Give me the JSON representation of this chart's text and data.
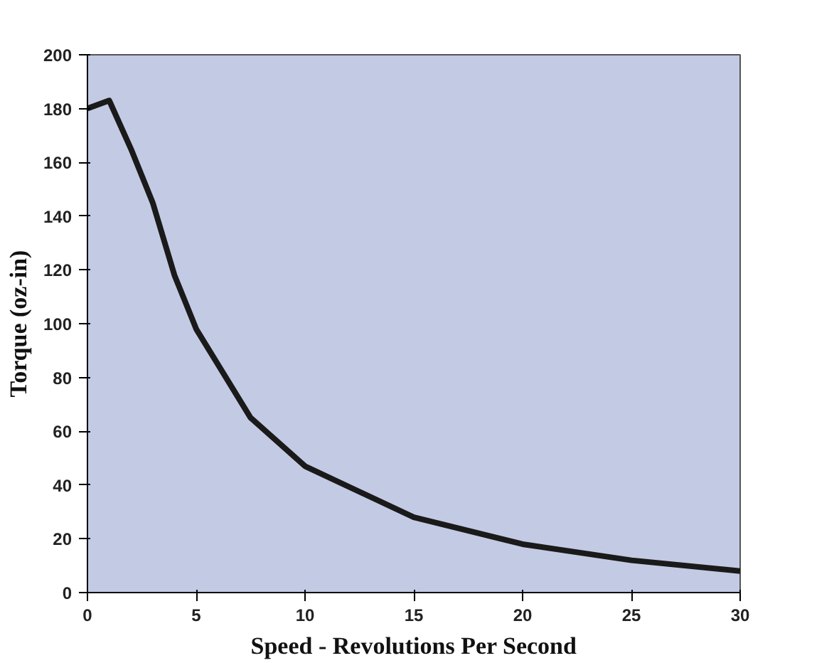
{
  "chart_data": {
    "type": "line",
    "xlabel": "Speed - Revolutions Per Second",
    "ylabel": "Torque (oz-in)",
    "x": [
      0,
      1,
      2,
      3,
      4,
      5,
      7.5,
      10,
      15,
      20,
      25,
      30
    ],
    "series": [
      {
        "color": "#1a1a1a",
        "values": [
          180,
          183,
          165,
          145,
          118,
          98,
          65,
          47,
          28,
          18,
          12,
          8
        ]
      }
    ],
    "xlim": [
      0,
      30
    ],
    "xticks": [
      0,
      5,
      10,
      15,
      20,
      25,
      30
    ],
    "ylim": [
      0,
      200
    ],
    "yticks": [
      0,
      20,
      40,
      60,
      80,
      100,
      120,
      140,
      160,
      180,
      200
    ],
    "grid": false,
    "marker": "none",
    "line_style": "solid"
  }
}
